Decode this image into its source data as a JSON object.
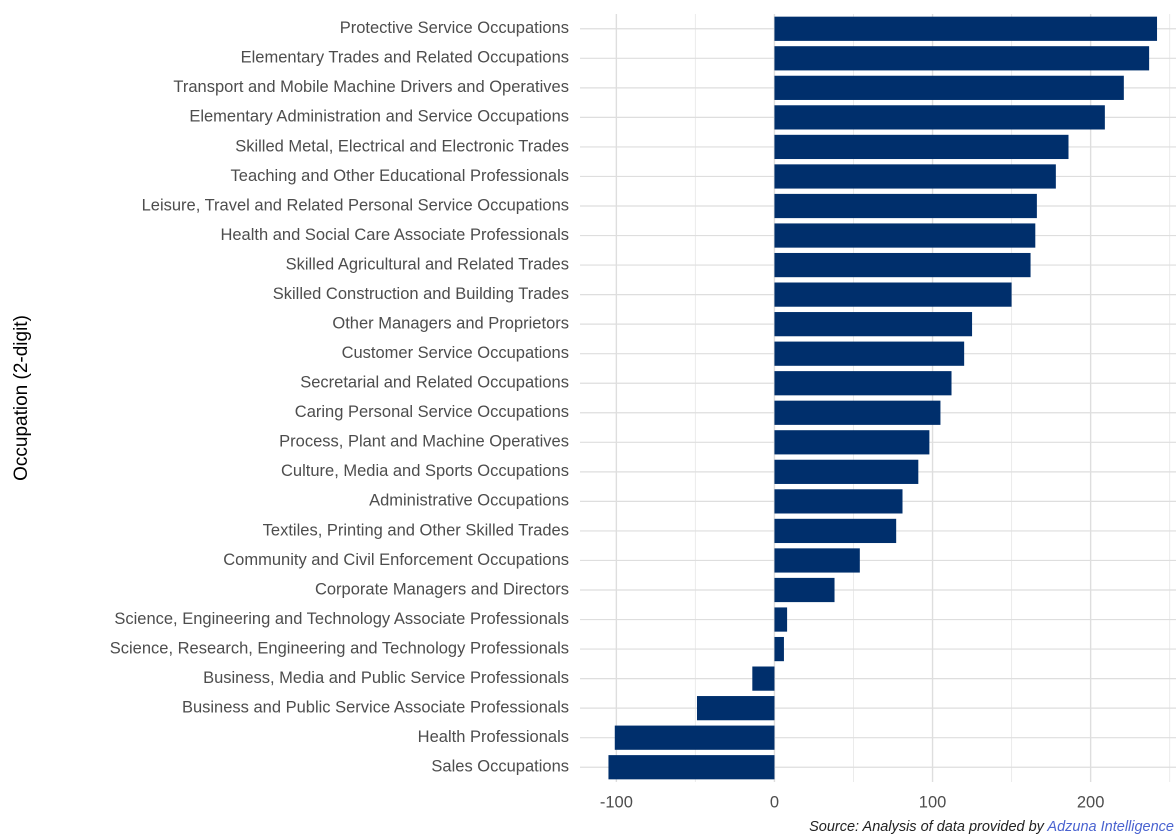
{
  "chart_data": {
    "type": "barh",
    "ylabel": "Occupation (2-digit)",
    "caption": {
      "text": "Source: Analysis of data provided by",
      "link": "Adzuna Intelligence"
    },
    "categories": [
      "Protective Service Occupations",
      "Elementary Trades and Related Occupations",
      "Transport and Mobile Machine Drivers and Operatives",
      "Elementary Administration and Service Occupations",
      "Skilled Metal, Electrical and Electronic Trades",
      "Teaching and Other Educational Professionals",
      "Leisure, Travel and Related Personal Service Occupations",
      "Health and Social Care Associate Professionals",
      "Skilled Agricultural and Related Trades",
      "Skilled Construction and Building Trades",
      "Other Managers and Proprietors",
      "Customer Service Occupations",
      "Secretarial and Related Occupations",
      "Caring Personal Service Occupations",
      "Process, Plant and Machine Operatives",
      "Culture, Media and Sports Occupations",
      "Administrative Occupations",
      "Textiles, Printing and Other Skilled Trades",
      "Community and Civil Enforcement Occupations",
      "Corporate Managers and Directors",
      "Science, Engineering and Technology Associate Professionals",
      "Science, Research, Engineering and Technology Professionals",
      "Business, Media and Public Service Professionals",
      "Business and Public Service Associate Professionals",
      "Health Professionals",
      "Sales Occupations"
    ],
    "values": [
      242,
      237,
      221,
      209,
      186,
      178,
      166,
      165,
      162,
      150,
      125,
      120,
      112,
      105,
      98,
      91,
      81,
      77,
      54,
      38,
      8,
      6,
      -14,
      -49,
      -101,
      -105
    ],
    "color": "#002f6c",
    "xlim": [
      -123,
      254
    ],
    "xticks": [
      -100,
      0,
      100,
      200
    ],
    "minor_xticks": [
      -50,
      50,
      150,
      250
    ],
    "grid": true
  }
}
